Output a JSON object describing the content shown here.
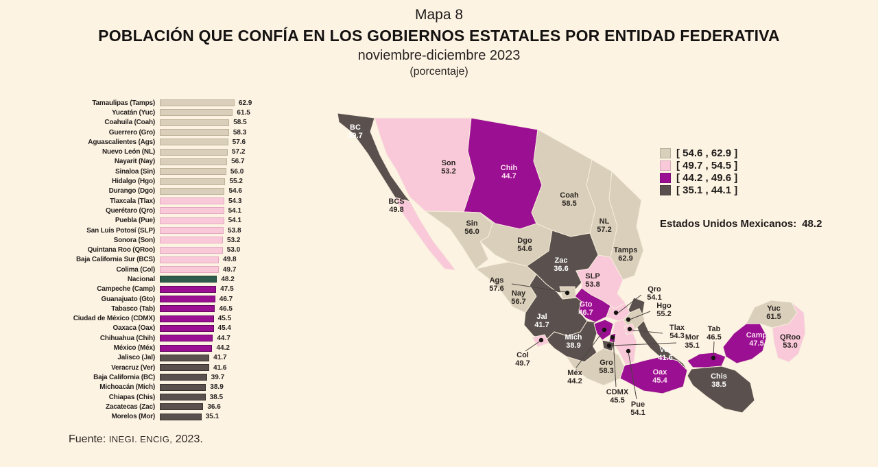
{
  "title": {
    "line1": "Mapa 8",
    "line2": "POBLACIÓN QUE CONFÍA EN LOS GOBIERNOS ESTATALES POR ENTIDAD FEDERATIVA",
    "line3": "noviembre-diciembre 2023",
    "line4": "(porcentaje)"
  },
  "source": {
    "prefix": "Fuente: ",
    "caps": "INEGI. ENCIG,",
    "year": " 2023."
  },
  "colors": {
    "c1": "#D9CFBA",
    "c1_border": "#BDB097",
    "c2": "#F9C9DA",
    "c2_border": "#E2A9C1",
    "c3": "#9B0F93",
    "c3_border": "#65085F",
    "c4": "#5A514E",
    "c4_border": "#383230",
    "national": "#2E5C4B",
    "national_border": "#1C4032",
    "background": "#FDF3E3"
  },
  "legend": {
    "items": [
      {
        "range": "[ 54.6 , 62.9 ]",
        "category": "c1"
      },
      {
        "range": "[ 49.7 , 54.5 ]",
        "category": "c2"
      },
      {
        "range": "[ 44.2 , 49.6 ]",
        "category": "c3"
      },
      {
        "range": "[ 35.1 , 44.1 ]",
        "category": "c4"
      }
    ],
    "national_label": "Estados Unidos Mexicanos:",
    "national_value": "48.2"
  },
  "bar_chart": {
    "rows": [
      {
        "label": "Tamaulipas (Tamps)",
        "value": 62.9,
        "display": "62.9",
        "category": "c1"
      },
      {
        "label": "Yucatán (Yuc)",
        "value": 61.5,
        "display": "61.5",
        "category": "c1"
      },
      {
        "label": "Coahuila (Coah)",
        "value": 58.5,
        "display": "58.5",
        "category": "c1"
      },
      {
        "label": "Guerrero (Gro)",
        "value": 58.3,
        "display": "58.3",
        "category": "c1"
      },
      {
        "label": "Aguascalientes (Ags)",
        "value": 57.6,
        "display": "57.6",
        "category": "c1"
      },
      {
        "label": "Nuevo León (NL)",
        "value": 57.2,
        "display": "57.2",
        "category": "c1"
      },
      {
        "label": "Nayarit (Nay)",
        "value": 56.7,
        "display": "56.7",
        "category": "c1"
      },
      {
        "label": "Sinaloa (Sin)",
        "value": 56.0,
        "display": "56.0",
        "category": "c1"
      },
      {
        "label": "Hidalgo (Hgo)",
        "value": 55.2,
        "display": "55.2",
        "category": "c1"
      },
      {
        "label": "Durango (Dgo)",
        "value": 54.6,
        "display": "54.6",
        "category": "c1"
      },
      {
        "label": "Tlaxcala (Tlax)",
        "value": 54.3,
        "display": "54.3",
        "category": "c2"
      },
      {
        "label": "Querétaro (Qro)",
        "value": 54.1,
        "display": "54.1",
        "category": "c2"
      },
      {
        "label": "Puebla (Pue)",
        "value": 54.1,
        "display": "54.1",
        "category": "c2"
      },
      {
        "label": "San Luis Potosí (SLP)",
        "value": 53.8,
        "display": "53.8",
        "category": "c2"
      },
      {
        "label": "Sonora (Son)",
        "value": 53.2,
        "display": "53.2",
        "category": "c2"
      },
      {
        "label": "Quintana Roo (QRoo)",
        "value": 53.0,
        "display": "53.0",
        "category": "c2"
      },
      {
        "label": "Baja California Sur (BCS)",
        "value": 49.8,
        "display": "49.8",
        "category": "c2"
      },
      {
        "label": "Colima (Col)",
        "value": 49.7,
        "display": "49.7",
        "category": "c2"
      },
      {
        "label": "Nacional",
        "value": 48.2,
        "display": "48.2",
        "category": "national"
      },
      {
        "label": "Campeche (Camp)",
        "value": 47.5,
        "display": "47.5",
        "category": "c3"
      },
      {
        "label": "Guanajuato (Gto)",
        "value": 46.7,
        "display": "46.7",
        "category": "c3"
      },
      {
        "label": "Tabasco (Tab)",
        "value": 46.5,
        "display": "46.5",
        "category": "c3"
      },
      {
        "label": "Ciudad de México (CDMX)",
        "value": 45.5,
        "display": "45.5",
        "category": "c3"
      },
      {
        "label": "Oaxaca (Oax)",
        "value": 45.4,
        "display": "45.4",
        "category": "c3"
      },
      {
        "label": "Chihuahua (Chih)",
        "value": 44.7,
        "display": "44.7",
        "category": "c3"
      },
      {
        "label": "México (Méx)",
        "value": 44.2,
        "display": "44.2",
        "category": "c3"
      },
      {
        "label": "Jalisco (Jal)",
        "value": 41.7,
        "display": "41.7",
        "category": "c4"
      },
      {
        "label": "Veracruz (Ver)",
        "value": 41.6,
        "display": "41.6",
        "category": "c4"
      },
      {
        "label": "Baja California (BC)",
        "value": 39.7,
        "display": "39.7",
        "category": "c4"
      },
      {
        "label": "Michoacán (Mich)",
        "value": 38.9,
        "display": "38.9",
        "category": "c4"
      },
      {
        "label": "Chiapas (Chis)",
        "value": 38.5,
        "display": "38.5",
        "category": "c4"
      },
      {
        "label": "Zacatecas (Zac)",
        "value": 36.6,
        "display": "36.6",
        "category": "c4"
      },
      {
        "label": "Morelos (Mor)",
        "value": 35.1,
        "display": "35.1",
        "category": "c4"
      }
    ]
  },
  "map": {
    "states": {
      "BC": {
        "abbr": "BC",
        "value": "39.7",
        "category": "c4"
      },
      "BCS": {
        "abbr": "BCS",
        "value": "49.8",
        "category": "c2"
      },
      "Son": {
        "abbr": "Son",
        "value": "53.2",
        "category": "c2"
      },
      "Chih": {
        "abbr": "Chih",
        "value": "44.7",
        "category": "c3"
      },
      "Sin": {
        "abbr": "Sin",
        "value": "56.0",
        "category": "c1"
      },
      "Dgo": {
        "abbr": "Dgo",
        "value": "54.6",
        "category": "c1"
      },
      "Coah": {
        "abbr": "Coah",
        "value": "58.5",
        "category": "c1"
      },
      "NL": {
        "abbr": "NL",
        "value": "57.2",
        "category": "c1"
      },
      "Tamps": {
        "abbr": "Tamps",
        "value": "62.9",
        "category": "c1"
      },
      "Zac": {
        "abbr": "Zac",
        "value": "36.6",
        "category": "c4"
      },
      "SLP": {
        "abbr": "SLP",
        "value": "53.8",
        "category": "c2"
      },
      "Nay": {
        "abbr": "Nay",
        "value": "56.7",
        "category": "c1"
      },
      "Ags": {
        "abbr": "Ags",
        "value": "57.6",
        "category": "c1"
      },
      "Jal": {
        "abbr": "Jal",
        "value": "41.7",
        "category": "c4"
      },
      "Gto": {
        "abbr": "Gto",
        "value": "46.7",
        "category": "c3"
      },
      "Qro": {
        "abbr": "Qro",
        "value": "54.1",
        "category": "c2"
      },
      "Hgo": {
        "abbr": "Hgo",
        "value": "55.2",
        "category": "c1"
      },
      "Mex": {
        "abbr": "Méx",
        "value": "44.2",
        "category": "c3"
      },
      "CDMX": {
        "abbr": "CDMX",
        "value": "45.5",
        "category": "c3"
      },
      "Mor": {
        "abbr": "Mor",
        "value": "35.1",
        "category": "c4"
      },
      "Tlax": {
        "abbr": "Tlax",
        "value": "54.3",
        "category": "c2"
      },
      "Pue": {
        "abbr": "Pue",
        "value": "54.1",
        "category": "c2"
      },
      "Mich": {
        "abbr": "Mich",
        "value": "38.9",
        "category": "c4"
      },
      "Col": {
        "abbr": "Col",
        "value": "49.7",
        "category": "c2"
      },
      "Gro": {
        "abbr": "Gro",
        "value": "58.3",
        "category": "c1"
      },
      "Oax": {
        "abbr": "Oax",
        "value": "45.4",
        "category": "c3"
      },
      "Ver": {
        "abbr": "Ver",
        "value": "41.6",
        "category": "c4"
      },
      "Tab": {
        "abbr": "Tab",
        "value": "46.5",
        "category": "c3"
      },
      "Chis": {
        "abbr": "Chis",
        "value": "38.5",
        "category": "c4"
      },
      "Camp": {
        "abbr": "Camp",
        "value": "47.5",
        "category": "c3"
      },
      "Yuc": {
        "abbr": "Yuc",
        "value": "61.5",
        "category": "c1"
      },
      "QRoo": {
        "abbr": "QRoo",
        "value": "53.0",
        "category": "c2"
      }
    }
  },
  "chart_data": [
    {
      "type": "bar",
      "orientation": "horizontal",
      "title": "Mapa 8 — Población que confía en los gobiernos estatales por entidad federativa",
      "subtitle": "noviembre-diciembre 2023 (porcentaje)",
      "categories": [
        "Tamaulipas (Tamps)",
        "Yucatán (Yuc)",
        "Coahuila (Coah)",
        "Guerrero (Gro)",
        "Aguascalientes (Ags)",
        "Nuevo León (NL)",
        "Nayarit (Nay)",
        "Sinaloa (Sin)",
        "Hidalgo (Hgo)",
        "Durango (Dgo)",
        "Tlaxcala (Tlax)",
        "Querétaro (Qro)",
        "Puebla (Pue)",
        "San Luis Potosí (SLP)",
        "Sonora (Son)",
        "Quintana Roo (QRoo)",
        "Baja California Sur (BCS)",
        "Colima (Col)",
        "Nacional",
        "Campeche (Camp)",
        "Guanajuato (Gto)",
        "Tabasco (Tab)",
        "Ciudad de México (CDMX)",
        "Oaxaca (Oax)",
        "Chihuahua (Chih)",
        "México (Méx)",
        "Jalisco (Jal)",
        "Veracruz (Ver)",
        "Baja California (BC)",
        "Michoacán (Mich)",
        "Chiapas (Chis)",
        "Zacatecas (Zac)",
        "Morelos (Mor)"
      ],
      "values": [
        62.9,
        61.5,
        58.5,
        58.3,
        57.6,
        57.2,
        56.7,
        56.0,
        55.2,
        54.6,
        54.3,
        54.1,
        54.1,
        53.8,
        53.2,
        53.0,
        49.8,
        49.7,
        48.2,
        47.5,
        46.7,
        46.5,
        45.5,
        45.4,
        44.7,
        44.2,
        41.7,
        41.6,
        39.7,
        38.9,
        38.5,
        36.6,
        35.1
      ],
      "national_reference": 48.2,
      "xlim": [
        0,
        70
      ],
      "bins": [
        [
          54.6,
          62.9
        ],
        [
          49.7,
          54.5
        ],
        [
          44.2,
          49.6
        ],
        [
          35.1,
          44.1
        ]
      ]
    },
    {
      "type": "heatmap",
      "subtype": "choropleth-map",
      "region": "Mexico (entidades federativas)",
      "bins": [
        [
          54.6,
          62.9
        ],
        [
          49.7,
          54.5
        ],
        [
          44.2,
          49.6
        ],
        [
          35.1,
          44.1
        ]
      ],
      "national": 48.2,
      "values": {
        "BC": 39.7,
        "BCS": 49.8,
        "Son": 53.2,
        "Chih": 44.7,
        "Sin": 56.0,
        "Dgo": 54.6,
        "Coah": 58.5,
        "NL": 57.2,
        "Tamps": 62.9,
        "Zac": 36.6,
        "SLP": 53.8,
        "Nay": 56.7,
        "Ags": 57.6,
        "Jal": 41.7,
        "Gto": 46.7,
        "Qro": 54.1,
        "Hgo": 55.2,
        "Méx": 44.2,
        "CDMX": 45.5,
        "Mor": 35.1,
        "Tlax": 54.3,
        "Pue": 54.1,
        "Mich": 38.9,
        "Col": 49.7,
        "Gro": 58.3,
        "Oax": 45.4,
        "Ver": 41.6,
        "Tab": 46.5,
        "Chis": 38.5,
        "Camp": 47.5,
        "Yuc": 61.5,
        "QRoo": 53.0
      }
    }
  ]
}
